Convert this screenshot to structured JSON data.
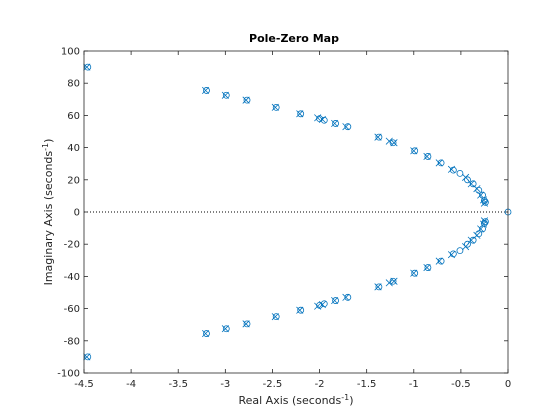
{
  "chart_data": {
    "type": "scatter",
    "title": "Pole-Zero Map",
    "xlabel": "Real Axis (seconds",
    "ylabel": "Imaginary Axis (seconds",
    "unit_superscript": "-1",
    "xlim": [
      -4.5,
      0
    ],
    "ylim": [
      -100,
      100
    ],
    "x_ticks": [
      -4.5,
      -4,
      -3.5,
      -3,
      -2.5,
      -2,
      -1.5,
      -1,
      -0.5,
      0
    ],
    "x_tick_labels": [
      "-4.5",
      "-4",
      "-3.5",
      "-3",
      "-2.5",
      "-2",
      "-1.5",
      "-1",
      "-0.5",
      "0"
    ],
    "y_ticks": [
      -100,
      -80,
      -60,
      -40,
      -20,
      0,
      20,
      40,
      60,
      80,
      100
    ],
    "y_tick_labels": [
      "-100",
      "-80",
      "-60",
      "-40",
      "-20",
      "0",
      "20",
      "40",
      "60",
      "80",
      "100"
    ],
    "grid": false,
    "zero_line": "dotted",
    "marker_color": "#0072BD",
    "series": [
      {
        "marker": "x",
        "points": [
          [
            -4.47,
            90
          ],
          [
            -3.21,
            75.5
          ],
          [
            -3.0,
            72.5
          ],
          [
            -2.78,
            69.5
          ],
          [
            -2.47,
            65
          ],
          [
            -2.21,
            61
          ],
          [
            -2.02,
            58.5
          ],
          [
            -1.97,
            57.5
          ],
          [
            -1.84,
            55
          ],
          [
            -1.72,
            53
          ],
          [
            -1.38,
            46.5
          ],
          [
            -1.26,
            44
          ],
          [
            -1.21,
            43
          ],
          [
            -1.0,
            38
          ],
          [
            -0.86,
            34.5
          ],
          [
            -0.73,
            30.5
          ],
          [
            -0.6,
            26.5
          ],
          [
            -0.45,
            21.5
          ],
          [
            -0.39,
            17.5
          ],
          [
            -0.33,
            14.5
          ],
          [
            -0.29,
            10.5
          ],
          [
            -0.26,
            7.5
          ],
          [
            -0.25,
            5.5
          ],
          [
            -4.47,
            -90
          ],
          [
            -3.21,
            -75.5
          ],
          [
            -3.0,
            -72.5
          ],
          [
            -2.78,
            -69.5
          ],
          [
            -2.47,
            -65
          ],
          [
            -2.21,
            -61
          ],
          [
            -2.02,
            -58.5
          ],
          [
            -1.97,
            -57.5
          ],
          [
            -1.84,
            -55
          ],
          [
            -1.72,
            -53
          ],
          [
            -1.38,
            -46.5
          ],
          [
            -1.26,
            -44
          ],
          [
            -1.21,
            -43
          ],
          [
            -1.0,
            -38
          ],
          [
            -0.86,
            -34.5
          ],
          [
            -0.73,
            -30.5
          ],
          [
            -0.6,
            -26.5
          ],
          [
            -0.45,
            -21.5
          ],
          [
            -0.39,
            -17.5
          ],
          [
            -0.33,
            -14.5
          ],
          [
            -0.29,
            -10.5
          ],
          [
            -0.26,
            -7.5
          ],
          [
            -0.25,
            -5.5
          ]
        ]
      },
      {
        "marker": "o",
        "points": [
          [
            -4.46,
            90
          ],
          [
            -3.2,
            75.5
          ],
          [
            -2.99,
            72.5
          ],
          [
            -2.77,
            69.5
          ],
          [
            -2.46,
            65
          ],
          [
            -2.2,
            61
          ],
          [
            -2.0,
            58
          ],
          [
            -1.95,
            57
          ],
          [
            -1.83,
            55
          ],
          [
            -1.7,
            53
          ],
          [
            -1.37,
            46.5
          ],
          [
            -1.22,
            43
          ],
          [
            -0.99,
            38
          ],
          [
            -0.85,
            34.5
          ],
          [
            -0.71,
            30.5
          ],
          [
            -0.58,
            26
          ],
          [
            -0.51,
            24
          ],
          [
            -0.43,
            20
          ],
          [
            -0.37,
            17.5
          ],
          [
            -0.31,
            13.5
          ],
          [
            -0.27,
            10.5
          ],
          [
            -0.25,
            7
          ],
          [
            -0.24,
            6
          ],
          [
            0,
            0
          ],
          [
            -4.46,
            -90
          ],
          [
            -3.2,
            -75.5
          ],
          [
            -2.99,
            -72.5
          ],
          [
            -2.77,
            -69.5
          ],
          [
            -2.46,
            -65
          ],
          [
            -2.2,
            -61
          ],
          [
            -2.0,
            -58
          ],
          [
            -1.95,
            -57
          ],
          [
            -1.83,
            -55
          ],
          [
            -1.7,
            -53
          ],
          [
            -1.37,
            -46.5
          ],
          [
            -1.22,
            -43
          ],
          [
            -0.99,
            -38
          ],
          [
            -0.85,
            -34.5
          ],
          [
            -0.71,
            -30.5
          ],
          [
            -0.58,
            -26
          ],
          [
            -0.51,
            -24
          ],
          [
            -0.43,
            -20
          ],
          [
            -0.37,
            -17.5
          ],
          [
            -0.31,
            -13.5
          ],
          [
            -0.27,
            -10.5
          ],
          [
            -0.25,
            -7
          ],
          [
            -0.24,
            -6
          ]
        ]
      }
    ]
  }
}
